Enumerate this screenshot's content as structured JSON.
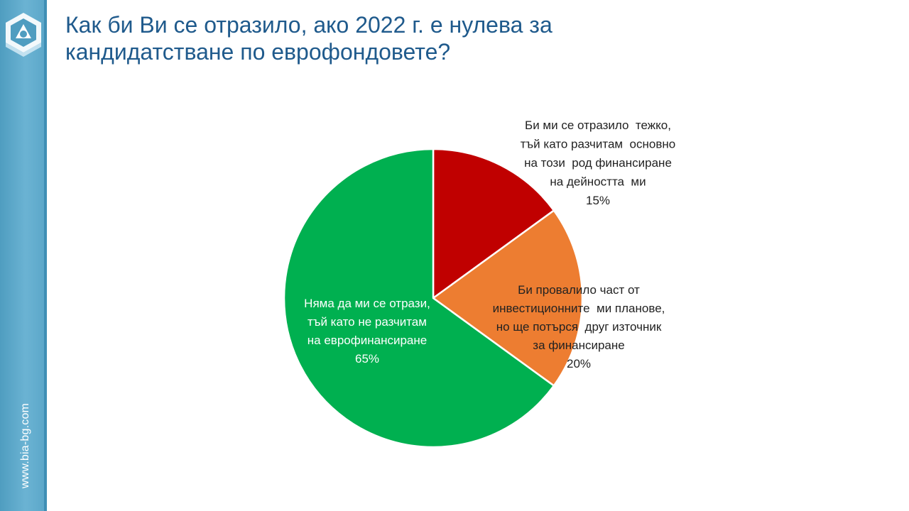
{
  "slide": {
    "title_lines": [
      "Как би Ви се отразило, ако 2022 г. е нулева за",
      "кандидатстване по еврофондовете?"
    ],
    "website": "www.bia-bg.com"
  },
  "colors": {
    "sidebar": "#5aa6c8",
    "title": "#1f5a8c",
    "slice_red": "#c00000",
    "slice_orange": "#ed7d31",
    "slice_green": "#00b050"
  },
  "chart_data": {
    "type": "pie",
    "start_angle_deg": 0,
    "direction": "clockwise",
    "slices": [
      {
        "label_lines": [
          "Би ми се отразило  тежко,",
          "тъй като разчитам  основно",
          "на този  род финансиране",
          "на дейността  ми"
        ],
        "value": 15,
        "value_label": "15%",
        "color": "#c00000",
        "label_color": "#222222",
        "label_position": "outside-top-right"
      },
      {
        "label_lines": [
          "Би провалило част от",
          "инвестиционните  ми планове,",
          "но ще потърся  друг източник",
          "за финансиране"
        ],
        "value": 20,
        "value_label": "20%",
        "color": "#ed7d31",
        "label_color": "#222222",
        "label_position": "inside-right"
      },
      {
        "label_lines": [
          "Няма да ми се отрази,",
          "тъй като не разчитам",
          "на еврофинансиране"
        ],
        "value": 65,
        "value_label": "65%",
        "color": "#00b050",
        "label_color": "#ffffff",
        "label_position": "inside-left"
      }
    ]
  }
}
